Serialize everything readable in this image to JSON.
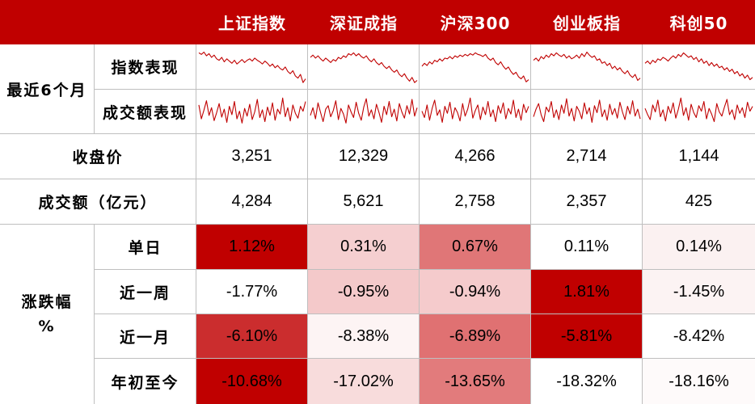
{
  "header": {
    "columns": [
      "上证指数",
      "深证成指",
      "沪深300",
      "创业板指",
      "科创50"
    ]
  },
  "recent6m": {
    "label": "最近6个月",
    "index_perf_label": "指数表现",
    "turnover_perf_label": "成交额表现"
  },
  "close_price": {
    "label": "收盘价",
    "values": [
      "3,251",
      "12,329",
      "4,266",
      "2,714",
      "1,144"
    ]
  },
  "turnover": {
    "label": "成交额（亿元）",
    "values": [
      "4,284",
      "5,621",
      "2,758",
      "2,357",
      "425"
    ]
  },
  "change": {
    "label_line1": "涨跌幅",
    "label_line2": "%",
    "rows": [
      {
        "label": "单日",
        "values": [
          "1.12%",
          "0.31%",
          "0.67%",
          "0.11%",
          "0.14%"
        ],
        "colors": [
          "#c00000",
          "#f5cfd0",
          "#e07677",
          "#ffffff",
          "#fbf1f1"
        ]
      },
      {
        "label": "近一周",
        "values": [
          "-1.77%",
          "-0.95%",
          "-0.94%",
          "1.81%",
          "-1.45%"
        ],
        "colors": [
          "#ffffff",
          "#f4c9ca",
          "#f5cbcc",
          "#c00000",
          "#fcf3f3"
        ]
      },
      {
        "label": "近一月",
        "values": [
          "-6.10%",
          "-8.38%",
          "-6.89%",
          "-5.81%",
          "-8.42%"
        ],
        "colors": [
          "#cb2d2e",
          "#fdf4f4",
          "#e07172",
          "#c00000",
          "#ffffff"
        ]
      },
      {
        "label": "年初至今",
        "values": [
          "-10.68%",
          "-17.02%",
          "-13.65%",
          "-18.32%",
          "-18.16%"
        ],
        "colors": [
          "#c00000",
          "#f8dcdc",
          "#e27b7c",
          "#ffffff",
          "#fefafa"
        ]
      }
    ]
  },
  "colors": {
    "header_bg": "#c00000",
    "line": "#c00000",
    "grid": "#bfbfbf"
  },
  "sparklines": {
    "index": [
      [
        0.86,
        0.82,
        0.88,
        0.78,
        0.84,
        0.74,
        0.8,
        0.7,
        0.66,
        0.74,
        0.62,
        0.7,
        0.64,
        0.58,
        0.66,
        0.56,
        0.62,
        0.68,
        0.6,
        0.66,
        0.7,
        0.64,
        0.72,
        0.66,
        0.62,
        0.56,
        0.64,
        0.58,
        0.5,
        0.56,
        0.46,
        0.52,
        0.44,
        0.4,
        0.48,
        0.36,
        0.3,
        0.38,
        0.24,
        0.18,
        0.28,
        0.06,
        0.16
      ],
      [
        0.74,
        0.8,
        0.72,
        0.78,
        0.7,
        0.64,
        0.72,
        0.66,
        0.6,
        0.68,
        0.64,
        0.74,
        0.7,
        0.78,
        0.74,
        0.84,
        0.8,
        0.86,
        0.78,
        0.84,
        0.76,
        0.72,
        0.78,
        0.68,
        0.62,
        0.7,
        0.6,
        0.54,
        0.6,
        0.5,
        0.44,
        0.5,
        0.4,
        0.34,
        0.4,
        0.28,
        0.22,
        0.3,
        0.18,
        0.1,
        0.2,
        0.06,
        0.12
      ],
      [
        0.5,
        0.58,
        0.52,
        0.62,
        0.56,
        0.66,
        0.62,
        0.7,
        0.64,
        0.72,
        0.7,
        0.76,
        0.7,
        0.78,
        0.74,
        0.8,
        0.76,
        0.82,
        0.78,
        0.84,
        0.8,
        0.86,
        0.82,
        0.8,
        0.76,
        0.82,
        0.72,
        0.66,
        0.72,
        0.6,
        0.54,
        0.62,
        0.5,
        0.42,
        0.48,
        0.36,
        0.28,
        0.34,
        0.22,
        0.16,
        0.24,
        0.08,
        0.14
      ],
      [
        0.66,
        0.72,
        0.64,
        0.76,
        0.7,
        0.8,
        0.74,
        0.84,
        0.78,
        0.86,
        0.8,
        0.76,
        0.82,
        0.72,
        0.78,
        0.7,
        0.74,
        0.8,
        0.72,
        0.84,
        0.76,
        0.88,
        0.8,
        0.74,
        0.78,
        0.66,
        0.7,
        0.58,
        0.62,
        0.52,
        0.58,
        0.44,
        0.5,
        0.4,
        0.46,
        0.36,
        0.3,
        0.38,
        0.26,
        0.2,
        0.28,
        0.12,
        0.18
      ],
      [
        0.58,
        0.64,
        0.56,
        0.66,
        0.6,
        0.7,
        0.66,
        0.74,
        0.7,
        0.64,
        0.72,
        0.78,
        0.72,
        0.82,
        0.76,
        0.86,
        0.8,
        0.74,
        0.78,
        0.68,
        0.74,
        0.62,
        0.7,
        0.58,
        0.64,
        0.52,
        0.6,
        0.5,
        0.56,
        0.46,
        0.5,
        0.4,
        0.46,
        0.36,
        0.42,
        0.3,
        0.36,
        0.24,
        0.3,
        0.18,
        0.26,
        0.14,
        0.2
      ]
    ],
    "turnover": [
      [
        0.7,
        0.3,
        0.55,
        0.82,
        0.4,
        0.62,
        0.25,
        0.48,
        0.74,
        0.35,
        0.58,
        0.2,
        0.66,
        0.42,
        0.8,
        0.3,
        0.52,
        0.18,
        0.6,
        0.38,
        0.72,
        0.28,
        0.5,
        0.86,
        0.34,
        0.56,
        0.22,
        0.64,
        0.4,
        0.76,
        0.26,
        0.58,
        0.44,
        0.9,
        0.36,
        0.62,
        0.24,
        0.7,
        0.46,
        0.32,
        0.66,
        0.52,
        0.8
      ],
      [
        0.4,
        0.62,
        0.3,
        0.76,
        0.48,
        0.22,
        0.58,
        0.68,
        0.36,
        0.54,
        0.82,
        0.28,
        0.6,
        0.44,
        0.18,
        0.7,
        0.5,
        0.34,
        0.78,
        0.46,
        0.26,
        0.64,
        0.88,
        0.38,
        0.56,
        0.3,
        0.72,
        0.48,
        0.2,
        0.66,
        0.42,
        0.8,
        0.36,
        0.58,
        0.24,
        0.74,
        0.5,
        0.32,
        0.68,
        0.44,
        0.86,
        0.38,
        0.62
      ],
      [
        0.52,
        0.34,
        0.7,
        0.26,
        0.6,
        0.84,
        0.4,
        0.56,
        0.2,
        0.66,
        0.46,
        0.78,
        0.3,
        0.62,
        0.48,
        0.24,
        0.74,
        0.38,
        0.58,
        0.9,
        0.32,
        0.54,
        0.7,
        0.28,
        0.64,
        0.42,
        0.8,
        0.36,
        0.56,
        0.22,
        0.68,
        0.46,
        0.76,
        0.3,
        0.6,
        0.44,
        0.84,
        0.34,
        0.58,
        0.26,
        0.72,
        0.48,
        0.66
      ],
      [
        0.36,
        0.58,
        0.74,
        0.42,
        0.22,
        0.64,
        0.5,
        0.8,
        0.34,
        0.56,
        0.28,
        0.7,
        0.46,
        0.88,
        0.38,
        0.6,
        0.24,
        0.66,
        0.52,
        0.3,
        0.76,
        0.44,
        0.62,
        0.2,
        0.68,
        0.48,
        0.84,
        0.36,
        0.56,
        0.26,
        0.72,
        0.42,
        0.6,
        0.32,
        0.78,
        0.5,
        0.28,
        0.66,
        0.44,
        0.82,
        0.38,
        0.58,
        0.3
      ],
      [
        0.6,
        0.42,
        0.28,
        0.7,
        0.5,
        0.84,
        0.36,
        0.56,
        0.24,
        0.66,
        0.46,
        0.76,
        0.32,
        0.58,
        0.9,
        0.4,
        0.62,
        0.26,
        0.72,
        0.48,
        0.34,
        0.68,
        0.52,
        0.8,
        0.3,
        0.6,
        0.44,
        0.22,
        0.74,
        0.5,
        0.38,
        0.64,
        0.86,
        0.42,
        0.56,
        0.28,
        0.7,
        0.46,
        0.62,
        0.34,
        0.78,
        0.52,
        0.66
      ]
    ]
  }
}
